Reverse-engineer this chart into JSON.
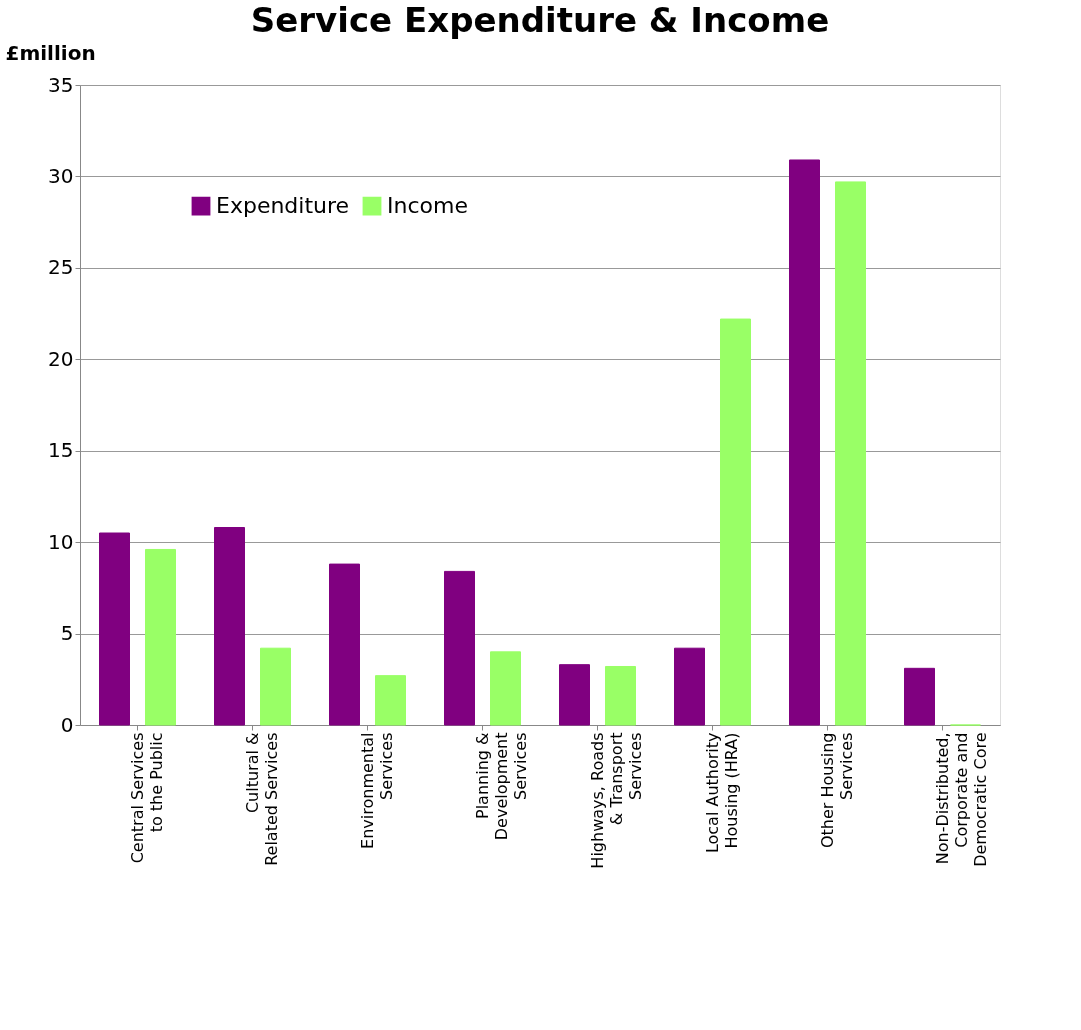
{
  "chart_data": {
    "type": "bar",
    "title": "Service Expenditure & Income",
    "ylabel": "£million",
    "categories": [
      "Central Services to the Public",
      "Cultural & Related Services",
      "Environmental Services",
      "Planning & Development Services",
      "Highways, Roads & Transport Services",
      "Local Authority Housing (HRA)",
      "Other Housing Services",
      "Non-Distributed, Corporate and Democratic Core"
    ],
    "series": [
      {
        "name": "Expenditure",
        "color": "#800080",
        "values": [
          10.5,
          10.8,
          8.8,
          8.4,
          3.3,
          4.2,
          30.9,
          3.1
        ]
      },
      {
        "name": "Income",
        "color": "#99ff66",
        "values": [
          9.6,
          4.2,
          2.7,
          4.0,
          3.2,
          22.2,
          29.7,
          0
        ]
      }
    ],
    "ylim": [
      0,
      35
    ],
    "yticks": [
      0,
      5,
      10,
      15,
      20,
      25,
      30,
      35
    ],
    "grid": "y",
    "legend": "top left"
  }
}
